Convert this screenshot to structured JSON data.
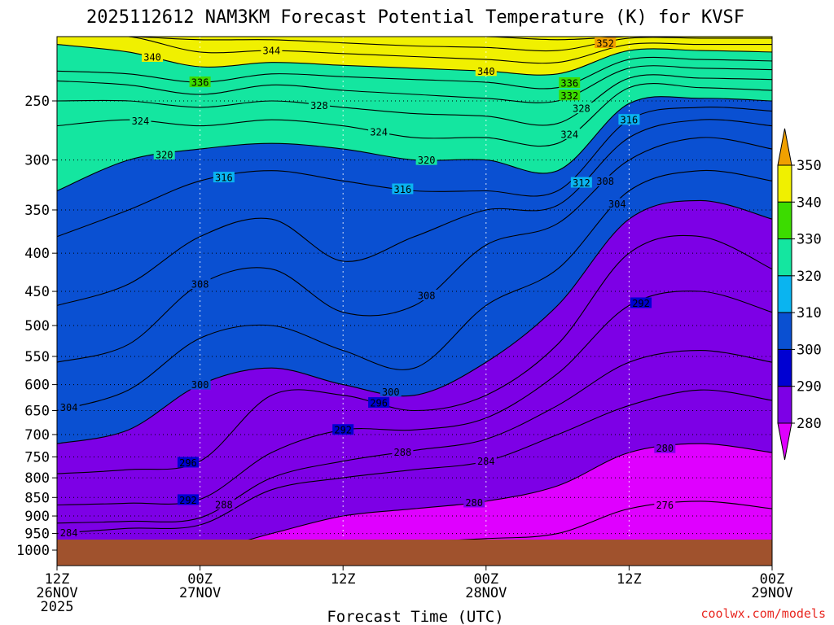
{
  "chart_data": {
    "type": "contour",
    "title": "2025112612 NAM3KM Forecast Potential Temperature (K) for KVSF",
    "xlabel": "Forecast Time (UTC)",
    "ylabel": "",
    "credit": "coolwx.com/models",
    "y_axis": {
      "scale": "log-pressure",
      "ticks": [
        250,
        300,
        350,
        400,
        450,
        500,
        550,
        600,
        650,
        700,
        750,
        800,
        850,
        900,
        950,
        1000
      ],
      "range_hpa": [
        200,
        1000
      ]
    },
    "x_axis": {
      "range_hours": [
        0,
        60
      ],
      "ticks": [
        {
          "hour": 0,
          "lines": [
            "12Z",
            "26NOV",
            "2025"
          ]
        },
        {
          "hour": 12,
          "lines": [
            "00Z",
            "27NOV"
          ]
        },
        {
          "hour": 24,
          "lines": [
            "12Z"
          ]
        },
        {
          "hour": 36,
          "lines": [
            "00Z",
            "28NOV"
          ]
        },
        {
          "hour": 48,
          "lines": [
            "12Z"
          ]
        },
        {
          "hour": 60,
          "lines": [
            "00Z",
            "29NOV"
          ]
        }
      ]
    },
    "grid": true,
    "colorbar": {
      "ticks": [
        "280",
        "290",
        "300",
        "310",
        "320",
        "330",
        "340",
        "350"
      ],
      "colors": [
        "#df00ff",
        "#7d00e6",
        "#0000d2",
        "#0a50d2",
        "#0ab4f0",
        "#14e6a0",
        "#3cdc00",
        "#f0f000",
        "#f0a000"
      ]
    },
    "bands": [
      {
        "k": 270,
        "color": "#df00ff"
      },
      {
        "k": 280,
        "color": "#7d00e6"
      },
      {
        "k": 290,
        "color": "#0000d2"
      },
      {
        "k": 300,
        "color": "#0a50d2"
      },
      {
        "k": 310,
        "color": "#0ab4f0"
      },
      {
        "k": 320,
        "color": "#14e6a0"
      },
      {
        "k": 330,
        "color": "#3cdc00"
      },
      {
        "k": 340,
        "color": "#f0f000"
      },
      {
        "k": 350,
        "color": "#f0a000"
      }
    ],
    "series_hours": [
      0,
      6,
      12,
      18,
      24,
      30,
      36,
      42,
      48,
      54,
      60
    ],
    "isentropes": [
      {
        "k": 276,
        "p": [
          1015,
          1015,
          1015,
          1005,
          985,
          975,
          965,
          950,
          880,
          860,
          880
        ]
      },
      {
        "k": 280,
        "p": [
          1010,
          1010,
          1005,
          950,
          900,
          880,
          860,
          820,
          740,
          720,
          740
        ]
      },
      {
        "k": 284,
        "p": [
          950,
          935,
          925,
          830,
          800,
          780,
          760,
          700,
          640,
          610,
          630
        ]
      },
      {
        "k": 288,
        "p": [
          920,
          915,
          905,
          800,
          760,
          735,
          710,
          640,
          560,
          540,
          560
        ]
      },
      {
        "k": 292,
        "p": [
          870,
          865,
          855,
          740,
          690,
          690,
          665,
          580,
          470,
          450,
          480
        ]
      },
      {
        "k": 296,
        "p": [
          790,
          780,
          760,
          620,
          620,
          650,
          620,
          530,
          400,
          380,
          420
        ]
      },
      {
        "k": 300,
        "p": [
          720,
          690,
          600,
          570,
          600,
          620,
          560,
          470,
          360,
          340,
          360
        ]
      },
      {
        "k": 304,
        "p": [
          650,
          610,
          520,
          500,
          540,
          570,
          470,
          420,
          330,
          310,
          320
        ]
      },
      {
        "k": 308,
        "p": [
          560,
          530,
          440,
          420,
          480,
          470,
          390,
          365,
          300,
          280,
          290
        ]
      },
      {
        "k": 312,
        "p": [
          470,
          440,
          380,
          360,
          410,
          380,
          350,
          345,
          280,
          265,
          270
        ]
      },
      {
        "k": 316,
        "p": [
          380,
          350,
          320,
          310,
          320,
          330,
          330,
          330,
          265,
          255,
          258
        ]
      },
      {
        "k": 320,
        "p": [
          330,
          300,
          290,
          285,
          290,
          300,
          300,
          310,
          252,
          248,
          250
        ]
      },
      {
        "k": 324,
        "p": [
          270,
          265,
          270,
          265,
          270,
          280,
          280,
          285,
          240,
          240,
          242
        ]
      },
      {
        "k": 328,
        "p": [
          250,
          250,
          255,
          250,
          255,
          260,
          262,
          268,
          233,
          233,
          234
        ]
      },
      {
        "k": 332,
        "p": [
          235,
          238,
          245,
          238,
          242,
          245,
          248,
          250,
          226,
          226,
          227
        ]
      },
      {
        "k": 336,
        "p": [
          228,
          230,
          236,
          230,
          232,
          234,
          236,
          240,
          220,
          220,
          221
        ]
      },
      {
        "k": 340,
        "p": [
          210,
          215,
          225,
          222,
          224,
          226,
          228,
          230,
          214,
          214,
          215
        ]
      },
      {
        "k": 344,
        "p": [
          205,
          205,
          215,
          214,
          216,
          218,
          220,
          222,
          210,
          210,
          210
        ]
      },
      {
        "k": 348,
        "p": [
          200,
          200,
          207,
          207,
          209,
          211,
          212,
          214,
          206,
          206,
          206
        ]
      },
      {
        "k": 352,
        "p": [
          200,
          200,
          201,
          201,
          202,
          204,
          205,
          207,
          203,
          203,
          203
        ]
      }
    ],
    "contour_labels": [
      {
        "text": "340",
        "hour": 8,
        "k": 340
      },
      {
        "text": "344",
        "hour": 18,
        "k": 344
      },
      {
        "text": "352",
        "hour": 46,
        "k": 352
      },
      {
        "text": "340",
        "hour": 36,
        "k": 340
      },
      {
        "text": "336",
        "hour": 12,
        "k": 336
      },
      {
        "text": "336",
        "hour": 43,
        "k": 336
      },
      {
        "text": "332",
        "hour": 43,
        "k": 332
      },
      {
        "text": "328",
        "hour": 22,
        "k": 328
      },
      {
        "text": "328",
        "hour": 44,
        "k": 328
      },
      {
        "text": "324",
        "hour": 7,
        "k": 324
      },
      {
        "text": "324",
        "hour": 27,
        "k": 324
      },
      {
        "text": "324",
        "hour": 43,
        "k": 324
      },
      {
        "text": "320",
        "hour": 9,
        "k": 320
      },
      {
        "text": "320",
        "hour": 31,
        "k": 320
      },
      {
        "text": "316",
        "hour": 14,
        "k": 316
      },
      {
        "text": "316",
        "hour": 29,
        "k": 316
      },
      {
        "text": "316",
        "hour": 48,
        "k": 316
      },
      {
        "text": "312",
        "hour": 44,
        "k": 312
      },
      {
        "text": "308",
        "hour": 46,
        "k": 308
      },
      {
        "text": "308",
        "hour": 31,
        "k": 308
      },
      {
        "text": "308",
        "hour": 12,
        "k": 308
      },
      {
        "text": "304",
        "hour": 47,
        "k": 304
      },
      {
        "text": "304",
        "hour": 1,
        "k": 304
      },
      {
        "text": "300",
        "hour": 12,
        "k": 300
      },
      {
        "text": "300",
        "hour": 28,
        "k": 300
      },
      {
        "text": "296",
        "hour": 27,
        "k": 296
      },
      {
        "text": "296",
        "hour": 11,
        "k": 296
      },
      {
        "text": "292",
        "hour": 49,
        "k": 292
      },
      {
        "text": "292",
        "hour": 11,
        "k": 292
      },
      {
        "text": "292",
        "hour": 24,
        "k": 292
      },
      {
        "text": "288",
        "hour": 29,
        "k": 288
      },
      {
        "text": "288",
        "hour": 14,
        "k": 288
      },
      {
        "text": "284",
        "hour": 36,
        "k": 284
      },
      {
        "text": "284",
        "hour": 1,
        "k": 284
      },
      {
        "text": "280",
        "hour": 35,
        "k": 280
      },
      {
        "text": "280",
        "hour": 51,
        "k": 280
      },
      {
        "text": "276",
        "hour": 51,
        "k": 276
      }
    ],
    "ground": {
      "color": "#a0522d",
      "p_top": 968
    }
  }
}
